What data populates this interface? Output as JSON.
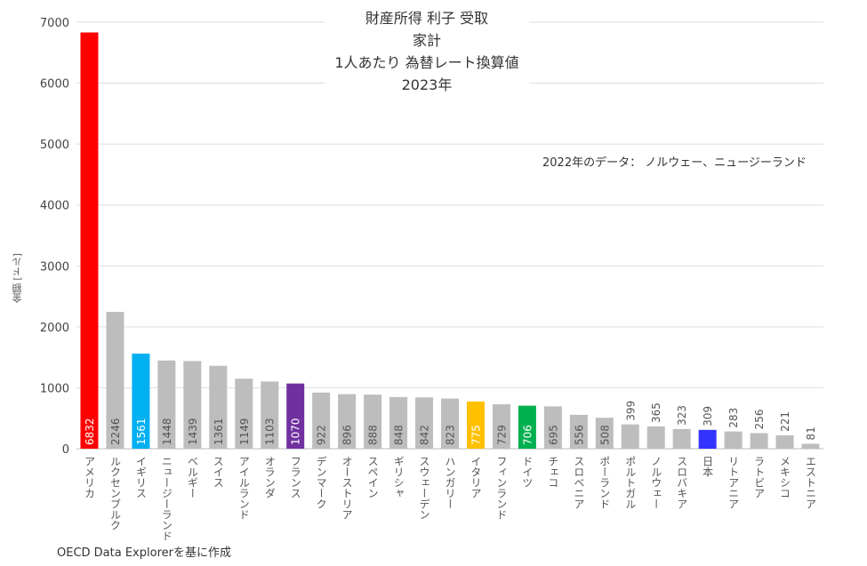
{
  "chart_data": {
    "type": "bar",
    "title": [
      "財産所得 利子 受取",
      "家計",
      "1人あたり 為替レート換算値",
      "2023年"
    ],
    "annotation": "2022年のデータ： ノルウェー、ニュージーランド",
    "source": "OECD Data Explorerを基に作成",
    "xlabel": "",
    "ylabel": "金額 [ドル]",
    "ylim": [
      0,
      7000
    ],
    "yticks": [
      0,
      1000,
      2000,
      3000,
      4000,
      5000,
      6000,
      7000
    ],
    "grid": true,
    "categories": [
      "アメリカ",
      "ルクセンブルク",
      "イギリス",
      "ニュージーランド",
      "ベルギー",
      "スイス",
      "アイルランド",
      "オランダ",
      "フランス",
      "デンマーク",
      "オーストリア",
      "スペイン",
      "ギリシャ",
      "スウェーデン",
      "ハンガリー",
      "イタリア",
      "フィンランド",
      "ドイツ",
      "チェコ",
      "スロベニア",
      "ポーランド",
      "ポルトガル",
      "ノルウェー",
      "スロバキア",
      "日本",
      "リトアニア",
      "ラトビア",
      "メキシコ",
      "エストニア"
    ],
    "values": [
      6832,
      2246,
      1561,
      1448,
      1439,
      1361,
      1149,
      1103,
      1070,
      922,
      896,
      888,
      848,
      842,
      823,
      775,
      729,
      706,
      695,
      556,
      508,
      399,
      365,
      323,
      309,
      283,
      256,
      221,
      81
    ],
    "colors": {
      "default": "#bdbdbd",
      "アメリカ": "#ff0000",
      "イギリス": "#00b0f0",
      "フランス": "#7030a0",
      "イタリア": "#ffc000",
      "ドイツ": "#00b050",
      "日本": "#3333ff"
    }
  }
}
